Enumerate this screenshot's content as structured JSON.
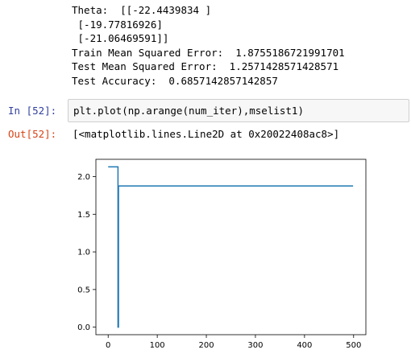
{
  "stdout": {
    "lines": [
      "Theta:  [[-22.4439834 ]",
      " [-19.77816926]",
      " [-21.06469591]]",
      "Train Mean Squared Error:  1.8755186721991701",
      "Test Mean Squared Error:  1.2571428571428571",
      "Test Accuracy:  0.6857142857142857"
    ]
  },
  "cell": {
    "in_prompt": "In [52]:",
    "code": "plt.plot(np.arange(num_iter),mselist1)",
    "out_prompt": "Out[52]:",
    "output_text": "[<matplotlib.lines.Line2D at 0x20022408ac8>]"
  },
  "chart_data": {
    "type": "line",
    "title": "",
    "xlabel": "",
    "ylabel": "",
    "xlim": [
      -25,
      525
    ],
    "ylim": [
      -0.1,
      2.23
    ],
    "x_ticks": [
      0,
      100,
      200,
      300,
      400,
      500
    ],
    "y_ticks": [
      0.0,
      0.5,
      1.0,
      1.5,
      2.0
    ],
    "x_tick_labels": [
      "0",
      "100",
      "200",
      "300",
      "400",
      "500"
    ],
    "y_tick_labels": [
      "0.0",
      "0.5",
      "1.0",
      "1.5",
      "2.0"
    ],
    "grid": false,
    "line_color": "#1f77b4",
    "series": [
      {
        "x": [
          0,
          20,
          20,
          21,
          21,
          499
        ],
        "y": [
          2.13,
          2.13,
          0.0,
          0.0,
          1.8755,
          1.8755
        ]
      }
    ]
  }
}
